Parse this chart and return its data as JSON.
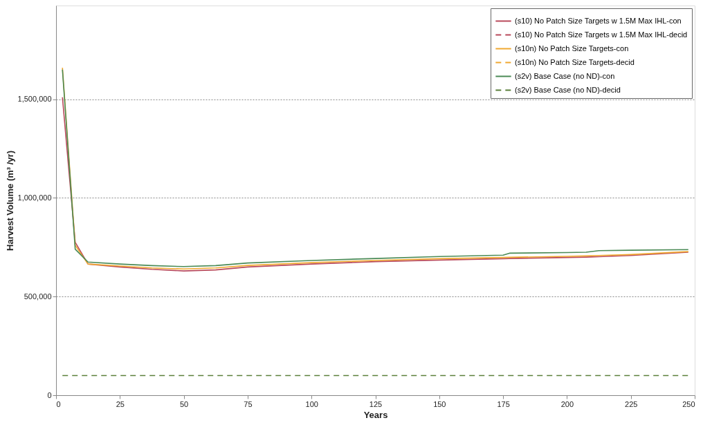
{
  "chart_data": {
    "type": "line",
    "xlabel": "Years",
    "ylabel": "Harvest Volume (m³ /yr)",
    "xlim": [
      0,
      250
    ],
    "xticks": [
      0,
      25,
      50,
      75,
      100,
      125,
      150,
      175,
      200,
      225,
      250
    ],
    "ylim": [
      0,
      1975000
    ],
    "yticks": [
      {
        "value": 0,
        "label": "0"
      },
      {
        "value": 500000,
        "label": "500,000"
      },
      {
        "value": 1000000,
        "label": "1,000,000"
      },
      {
        "value": 1500000,
        "label": "1,500,000"
      }
    ],
    "grid": "y",
    "legend": "top right",
    "marker": "none",
    "series": [
      {
        "name": "(s10) No Patch Size Targets w 1.5M Max IHL-con",
        "color": "#b8485a",
        "line_style": "solid",
        "x": [
          2.5,
          7.5,
          12.5,
          25,
          37.5,
          50,
          62.5,
          75,
          100,
          125,
          150,
          175,
          177.5,
          200,
          207.5,
          212.5,
          225,
          247.5
        ],
        "values": [
          1510000,
          775000,
          665000,
          650000,
          638000,
          630000,
          635000,
          650000,
          665000,
          677000,
          685000,
          692000,
          693000,
          698000,
          700000,
          702000,
          708000,
          725000
        ]
      },
      {
        "name": "(s10) No Patch Size Targets w 1.5M Max IHL-decid",
        "color": "#b8485a",
        "line_style": "dashed"
      },
      {
        "name": "(s10n) No Patch Size Targets-con",
        "color": "#f0a830",
        "line_style": "solid",
        "x": [
          2.5,
          7.5,
          12.5,
          25,
          37.5,
          50,
          62.5,
          75,
          100,
          125,
          150,
          175,
          177.5,
          200,
          207.5,
          212.5,
          225,
          247.5
        ],
        "values": [
          1660000,
          760000,
          665000,
          655000,
          645000,
          640000,
          645000,
          658000,
          672000,
          683000,
          692000,
          698000,
          699000,
          704000,
          706000,
          708000,
          713000,
          728000
        ]
      },
      {
        "name": "(s10n) No Patch Size Targets-decid",
        "color": "#f0a830",
        "line_style": "dashed"
      },
      {
        "name": "(s2v) Base Case (no ND)-con",
        "color": "#4a8a55",
        "line_style": "solid",
        "x": [
          2.5,
          7.5,
          12.5,
          25,
          37.5,
          50,
          62.5,
          75,
          100,
          125,
          150,
          175,
          177.5,
          200,
          207.5,
          212.5,
          225,
          247.5
        ],
        "values": [
          1650000,
          740000,
          675000,
          665000,
          657000,
          652000,
          657000,
          670000,
          683000,
          693000,
          703000,
          710000,
          720000,
          723000,
          725000,
          733000,
          735000,
          738000
        ]
      },
      {
        "name": "(s2v) Base Case (no ND)-decid",
        "color": "#5a7f3a",
        "line_style": "dashed",
        "x": [
          2.5,
          247.5
        ],
        "values": [
          100000,
          100000
        ]
      }
    ]
  }
}
